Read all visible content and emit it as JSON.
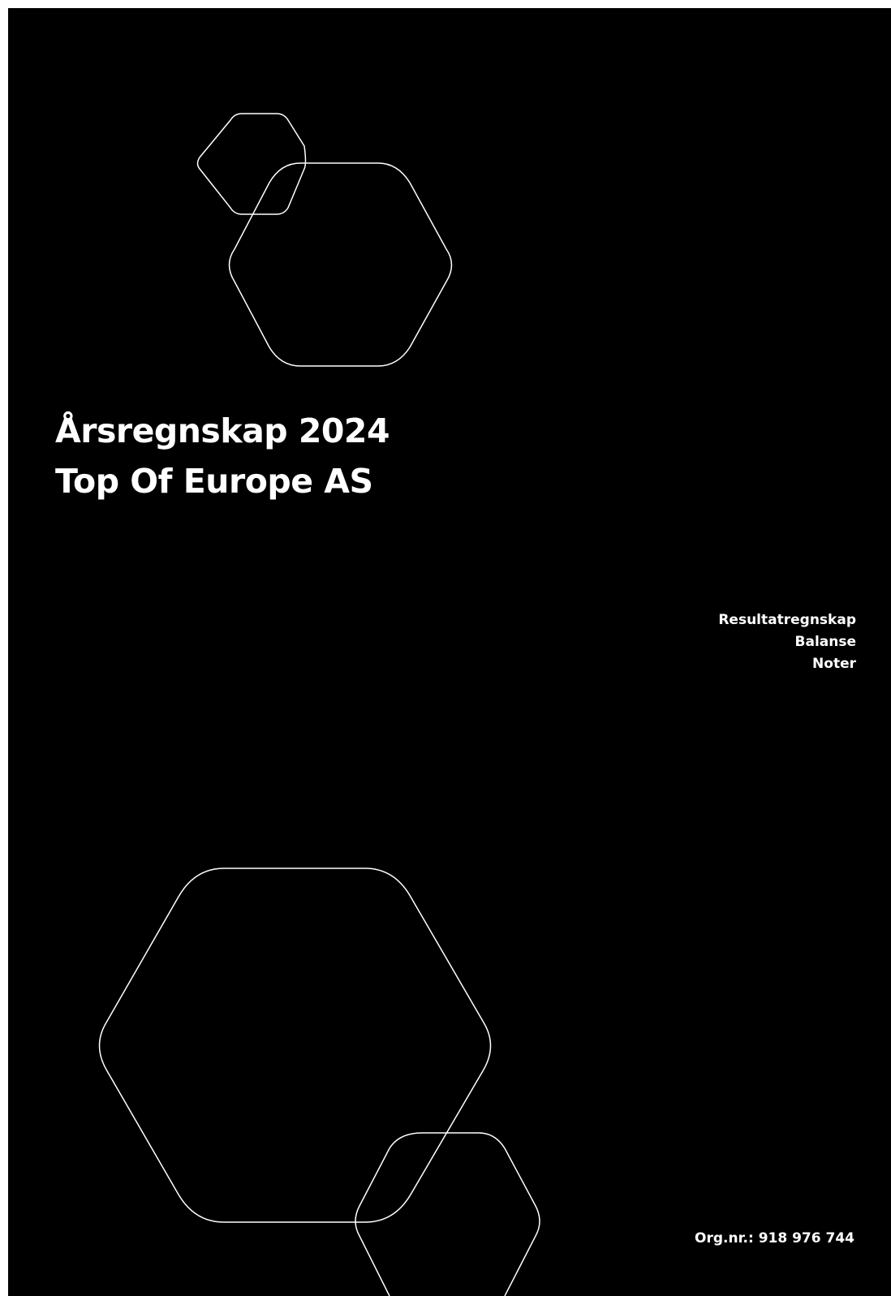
{
  "cover": {
    "title_line1": "Årsregnskap 2024",
    "title_line2": "Top Of Europe AS",
    "contents": [
      "Resultatregnskap",
      "Balanse",
      "Noter"
    ],
    "org_number": "Org.nr.: 918 976 744"
  },
  "colors": {
    "background": "#000000",
    "text": "#ffffff",
    "outline": "#ffffff"
  },
  "icons": [
    "hexagon-outline"
  ]
}
